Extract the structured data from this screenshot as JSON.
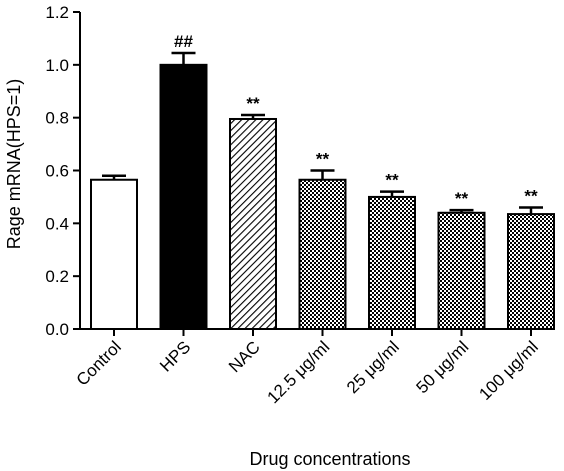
{
  "chart_data": {
    "type": "bar",
    "xlabel": "Drug concentrations",
    "ylabel": "Rage mRNA(HPS=1)",
    "ylim": [
      0,
      1.2
    ],
    "yticks": [
      "0.0",
      "0.2",
      "0.4",
      "0.6",
      "0.8",
      "1.0",
      "1.2"
    ],
    "categories": [
      "Control",
      "HPS",
      "NAC",
      "12.5 μg/ml",
      "25 μg/ml",
      "50 μg/ml",
      "100 μg/ml"
    ],
    "values": [
      0.565,
      1.0,
      0.795,
      0.565,
      0.5,
      0.44,
      0.435
    ],
    "errors": [
      0.015,
      0.045,
      0.015,
      0.035,
      0.02,
      0.01,
      0.025
    ],
    "significance": [
      "",
      "##",
      "**",
      "**",
      "**",
      "**",
      "**"
    ],
    "fills": [
      "white",
      "black",
      "diagonal-hatch",
      "checker",
      "checker",
      "checker",
      "checker"
    ],
    "grid": false
  }
}
